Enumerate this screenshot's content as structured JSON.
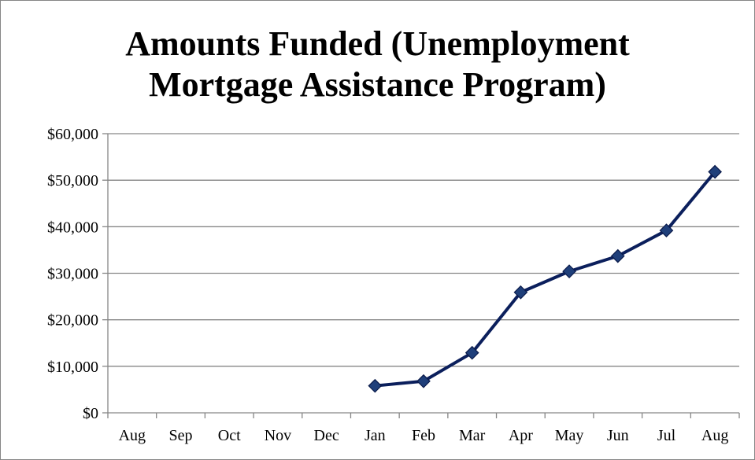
{
  "chart_data": {
    "type": "line",
    "title_lines": [
      "Amounts Funded (Unemployment",
      "Mortgage Assistance Program)"
    ],
    "categories": [
      "Aug",
      "Sep",
      "Oct",
      "Nov",
      "Dec",
      "Jan",
      "Feb",
      "Mar",
      "Apr",
      "May",
      "Jun",
      "Jul",
      "Aug"
    ],
    "series": [
      {
        "values": [
          null,
          null,
          null,
          null,
          null,
          5800,
          6800,
          12900,
          25900,
          30400,
          33700,
          39200,
          51800
        ],
        "color": "#0b1f5c",
        "marker": "diamond",
        "marker_color": "#1f3f7a"
      }
    ],
    "yticks": [
      "$0",
      "$10,000",
      "$20,000",
      "$30,000",
      "$40,000",
      "$50,000",
      "$60,000"
    ],
    "ylim": [
      0,
      60000
    ],
    "grid": true,
    "legend": "none",
    "gridline_color": "#868686"
  }
}
